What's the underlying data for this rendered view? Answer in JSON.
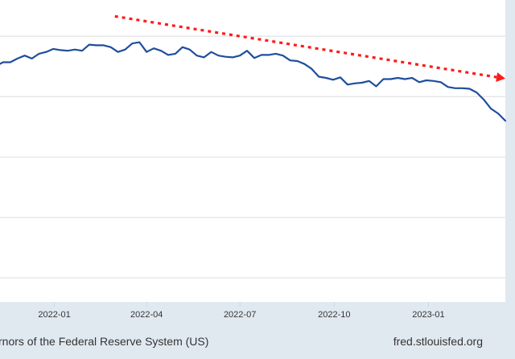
{
  "chart_data": {
    "type": "line",
    "x": [
      "2021-11-05",
      "2021-11-12",
      "2021-11-19",
      "2021-11-26",
      "2021-12-03",
      "2021-12-10",
      "2021-12-17",
      "2021-12-24",
      "2021-12-31",
      "2022-01-07",
      "2022-01-14",
      "2022-01-21",
      "2022-01-28",
      "2022-02-04",
      "2022-02-11",
      "2022-02-18",
      "2022-02-25",
      "2022-03-04",
      "2022-03-11",
      "2022-03-18",
      "2022-03-25",
      "2022-04-01",
      "2022-04-08",
      "2022-04-15",
      "2022-04-22",
      "2022-04-29",
      "2022-05-06",
      "2022-05-13",
      "2022-05-20",
      "2022-05-27",
      "2022-06-03",
      "2022-06-10",
      "2022-06-17",
      "2022-06-24",
      "2022-07-01",
      "2022-07-08",
      "2022-07-15",
      "2022-07-22",
      "2022-07-29",
      "2022-08-05",
      "2022-08-12",
      "2022-08-19",
      "2022-08-26",
      "2022-09-02",
      "2022-09-09",
      "2022-09-16",
      "2022-09-23",
      "2022-09-30",
      "2022-10-07",
      "2022-10-14",
      "2022-10-21",
      "2022-10-28",
      "2022-11-04",
      "2022-11-11",
      "2022-11-18",
      "2022-11-25",
      "2022-12-02",
      "2022-12-09",
      "2022-12-16",
      "2022-12-23",
      "2022-12-30",
      "2023-01-06",
      "2023-01-13",
      "2023-01-20",
      "2023-01-27",
      "2023-02-03",
      "2023-02-10",
      "2023-02-17",
      "2023-02-24",
      "2023-03-03",
      "2023-03-10",
      "2023-03-17"
    ],
    "series": [
      {
        "color": "#1f4e9b",
        "values": [
          1.01,
          1.07,
          1.07,
          1.13,
          1.18,
          1.13,
          1.21,
          1.24,
          1.29,
          1.27,
          1.26,
          1.28,
          1.26,
          1.36,
          1.35,
          1.35,
          1.32,
          1.24,
          1.28,
          1.38,
          1.4,
          1.24,
          1.3,
          1.26,
          1.19,
          1.21,
          1.32,
          1.28,
          1.18,
          1.15,
          1.24,
          1.18,
          1.16,
          1.15,
          1.18,
          1.26,
          1.14,
          1.19,
          1.19,
          1.21,
          1.18,
          1.1,
          1.09,
          1.04,
          0.96,
          0.83,
          0.81,
          0.78,
          0.82,
          0.7,
          0.72,
          0.73,
          0.76,
          0.67,
          0.79,
          0.79,
          0.81,
          0.79,
          0.81,
          0.74,
          0.77,
          0.76,
          0.74,
          0.66,
          0.64,
          0.64,
          0.63,
          0.57,
          0.45,
          0.3,
          0.22,
          0.1
        ]
      }
    ],
    "trend_arrow": {
      "color": "#ff1a1a",
      "x": [
        "2022-03-01",
        "2023-03-17"
      ],
      "y": [
        1.83,
        0.8
      ]
    },
    "xlim": [
      "2021-11-05",
      "2023-03-17"
    ],
    "ylim": [
      -2.9,
      2.1
    ],
    "y_gridlines": [
      -2.5,
      -1.5,
      -0.5,
      0.5,
      1.5
    ],
    "grid": true,
    "x_ticks": [
      {
        "date": "2022-01-01",
        "label": "2022-01"
      },
      {
        "date": "2022-04-01",
        "label": "2022-04"
      },
      {
        "date": "2022-07-01",
        "label": "2022-07"
      },
      {
        "date": "2022-10-01",
        "label": "2022-10"
      },
      {
        "date": "2023-01-01",
        "label": "2023-01"
      }
    ]
  },
  "footer": {
    "source_text": "rnors of the Federal Reserve System (US)",
    "site_text": "fred.stlouisfed.org"
  }
}
